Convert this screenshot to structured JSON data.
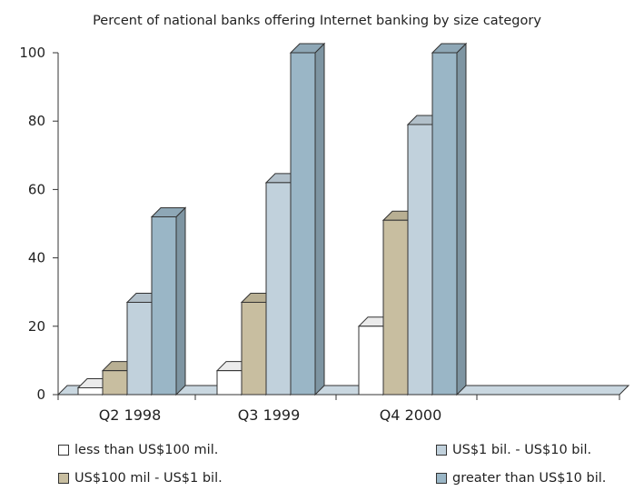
{
  "chart_data": {
    "type": "bar",
    "title": "Percent of national banks offering Internet banking by size category",
    "categories": [
      "Q2 1998",
      "Q3 1999",
      "Q4 2000"
    ],
    "series": [
      {
        "name": "less than US$100 mil.",
        "values": [
          2,
          7,
          20
        ],
        "color": "#ffffff"
      },
      {
        "name": "US$100 mil - US$1 bil.",
        "values": [
          7,
          27,
          51
        ],
        "color": "#c8bea0"
      },
      {
        "name": "US$1 bil. - US$10 bil.",
        "values": [
          27,
          62,
          79
        ],
        "color": "#c1d1dc"
      },
      {
        "name": "greater than US$10 bil.",
        "values": [
          52,
          100,
          100
        ],
        "color": "#9ab6c6"
      }
    ],
    "ylim": [
      0,
      100
    ],
    "yticks": [
      0,
      20,
      40,
      60,
      80,
      100
    ],
    "xlabel": "",
    "ylabel": "",
    "grid": false,
    "legend_position": "bottom"
  }
}
